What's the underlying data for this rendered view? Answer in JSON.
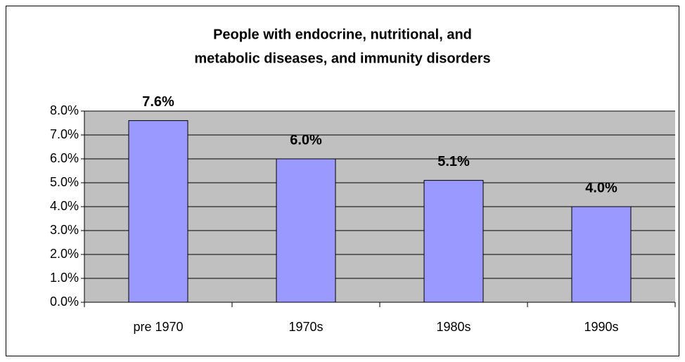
{
  "chart_data": {
    "type": "bar",
    "title": [
      "People with endocrine, nutritional, and",
      "metabolic diseases, and immunity disorders"
    ],
    "categories": [
      "pre 1970",
      "1970s",
      "1980s",
      "1990s"
    ],
    "values": [
      7.6,
      6.0,
      5.1,
      4.0
    ],
    "value_labels": [
      "7.6%",
      "6.0%",
      "5.1%",
      "4.0%"
    ],
    "color": "#9999ff",
    "ylim": [
      0,
      8
    ],
    "yticks": [
      {
        "value": 0,
        "label": "0.0%"
      },
      {
        "value": 1,
        "label": "1.0%"
      },
      {
        "value": 2,
        "label": "2.0%"
      },
      {
        "value": 3,
        "label": "3.0%"
      },
      {
        "value": 4,
        "label": "4.0%"
      },
      {
        "value": 5,
        "label": "5.0%"
      },
      {
        "value": 6,
        "label": "6.0%"
      },
      {
        "value": 7,
        "label": "7.0%"
      },
      {
        "value": 8,
        "label": "8.0%"
      }
    ],
    "grid": true
  }
}
